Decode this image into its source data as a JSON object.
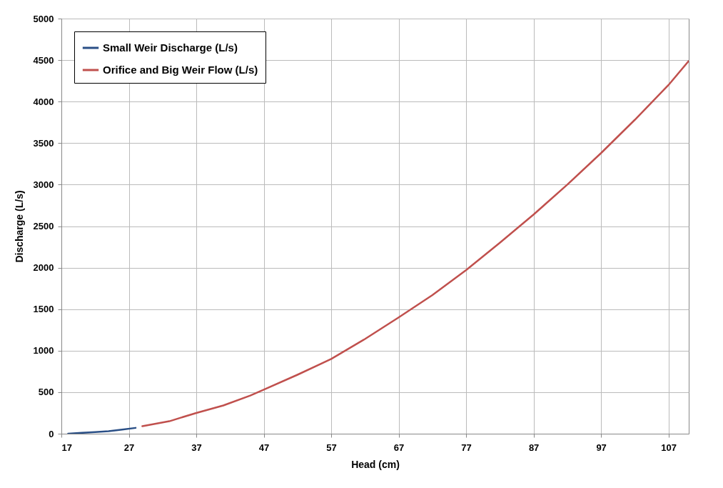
{
  "chart_data": {
    "type": "line",
    "xlabel": "Head (cm)",
    "ylabel": "Discharge (L/s)",
    "xlim": [
      17,
      110
    ],
    "xticks": [
      17,
      27,
      37,
      47,
      57,
      67,
      77,
      87,
      97,
      107
    ],
    "ylim": [
      0,
      5000
    ],
    "yticks": [
      0,
      500,
      1000,
      1500,
      2000,
      2500,
      3000,
      3500,
      4000,
      4500,
      5000
    ],
    "grid": true,
    "legend": "top left",
    "marker": "none",
    "line_style": "solid",
    "series": [
      {
        "name": "Small Weir Discharge (L/s)",
        "color": "#2a4f86",
        "x": [
          18,
          20,
          22,
          24,
          26,
          28
        ],
        "values": [
          0,
          10,
          20,
          30,
          50,
          70
        ]
      },
      {
        "name": "Orifice and Big Weir Flow (L/s)",
        "color": "#c0504d",
        "x": [
          29,
          33,
          37,
          41,
          45,
          47,
          52,
          57,
          62,
          67,
          72,
          77,
          82,
          87,
          92,
          97,
          102,
          107,
          110
        ],
        "values": [
          90,
          150,
          250,
          340,
          460,
          530,
          710,
          900,
          1140,
          1400,
          1670,
          1970,
          2300,
          2640,
          3000,
          3380,
          3780,
          4200,
          4490
        ]
      }
    ]
  }
}
